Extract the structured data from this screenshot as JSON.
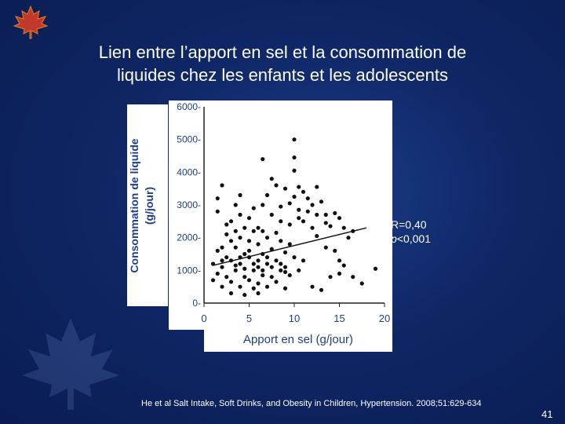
{
  "slide": {
    "title_line1": "Lien entre l’apport en sel et la consommation de",
    "title_line2": "liquides chez les enfants et les adolescents",
    "citation": "He et al Salt Intake, Soft Drinks, and Obesity in Children, Hypertension. 2008;51:629-634",
    "page_number": "41",
    "annotation_r": "R=0,40",
    "annotation_p_italic": "p",
    "annotation_p_rest": "<0,001"
  },
  "chart_data": {
    "type": "scatter",
    "title": "",
    "xlabel": "Apport en sel (g/jour)",
    "ylabel_line1": "Consommation de liquide",
    "ylabel_line2": "(g/jour)",
    "xlim": [
      0,
      20
    ],
    "ylim": [
      0,
      6000
    ],
    "x_ticks": [
      0,
      5,
      10,
      15,
      20
    ],
    "x_tick_labels": [
      "0",
      "5",
      "10",
      "15",
      "20"
    ],
    "y_ticks": [
      0,
      1000,
      2000,
      3000,
      4000,
      5000,
      6000
    ],
    "y_tick_labels": [
      "0-",
      "1000-",
      "2000-",
      "3000-",
      "4000-",
      "5000-",
      "6000-"
    ],
    "grid": false,
    "regression_line": {
      "x": [
        1,
        18
      ],
      "y": [
        1150,
        2300
      ]
    },
    "points": [
      [
        10.0,
        5000
      ],
      [
        10.0,
        4450
      ],
      [
        6.5,
        4400
      ],
      [
        10.0,
        4050
      ],
      [
        7.5,
        3800
      ],
      [
        8.0,
        3600
      ],
      [
        10.5,
        3550
      ],
      [
        12.5,
        3550
      ],
      [
        9.0,
        3500
      ],
      [
        11.0,
        3400
      ],
      [
        7.0,
        3300
      ],
      [
        10.0,
        3250
      ],
      [
        11.5,
        3200
      ],
      [
        13.0,
        3100
      ],
      [
        9.5,
        3050
      ],
      [
        12.0,
        3000
      ],
      [
        8.5,
        2950
      ],
      [
        10.5,
        2850
      ],
      [
        11.5,
        2800
      ],
      [
        14.5,
        2750
      ],
      [
        12.5,
        2700
      ],
      [
        13.5,
        2700
      ],
      [
        15.0,
        2600
      ],
      [
        10.5,
        2600
      ],
      [
        11.0,
        2500
      ],
      [
        13.5,
        2450
      ],
      [
        14.0,
        2350
      ],
      [
        15.5,
        2300
      ],
      [
        12.0,
        2300
      ],
      [
        16.5,
        2200
      ],
      [
        16.0,
        2000
      ],
      [
        12.5,
        2050
      ],
      [
        13.5,
        1700
      ],
      [
        14.5,
        1600
      ],
      [
        15.0,
        1300
      ],
      [
        15.5,
        1150
      ],
      [
        15.0,
        900
      ],
      [
        14.0,
        800
      ],
      [
        16.5,
        800
      ],
      [
        19.0,
        1050
      ],
      [
        17.5,
        600
      ],
      [
        12.0,
        500
      ],
      [
        13.0,
        400
      ],
      [
        1.5,
        3200
      ],
      [
        2.0,
        3600
      ],
      [
        4.0,
        3300
      ],
      [
        1.5,
        2800
      ],
      [
        3.0,
        2500
      ],
      [
        5.0,
        2600
      ],
      [
        4.5,
        2300
      ],
      [
        3.5,
        2200
      ],
      [
        6.0,
        2300
      ],
      [
        2.5,
        2100
      ],
      [
        5.5,
        2200
      ],
      [
        6.5,
        2200
      ],
      [
        3.0,
        1900
      ],
      [
        4.0,
        2000
      ],
      [
        7.0,
        2000
      ],
      [
        8.0,
        2150
      ],
      [
        2.0,
        1700
      ],
      [
        5.0,
        1900
      ],
      [
        6.0,
        1800
      ],
      [
        8.5,
        1900
      ],
      [
        9.5,
        1800
      ],
      [
        1.5,
        1600
      ],
      [
        3.5,
        1700
      ],
      [
        7.5,
        1650
      ],
      [
        9.0,
        1550
      ],
      [
        2.5,
        1400
      ],
      [
        4.5,
        1500
      ],
      [
        6.5,
        1500
      ],
      [
        10.0,
        1400
      ],
      [
        1.0,
        1200
      ],
      [
        3.0,
        1300
      ],
      [
        5.0,
        1400
      ],
      [
        8.0,
        1300
      ],
      [
        11.0,
        1300
      ],
      [
        2.0,
        1100
      ],
      [
        4.0,
        1200
      ],
      [
        6.0,
        1100
      ],
      [
        7.0,
        1200
      ],
      [
        9.0,
        1100
      ],
      [
        1.5,
        900
      ],
      [
        3.5,
        1000
      ],
      [
        5.5,
        1000
      ],
      [
        8.5,
        1000
      ],
      [
        10.5,
        1000
      ],
      [
        2.5,
        800
      ],
      [
        4.5,
        800
      ],
      [
        6.5,
        850
      ],
      [
        7.5,
        800
      ],
      [
        9.5,
        850
      ],
      [
        1.0,
        700
      ],
      [
        3.0,
        650
      ],
      [
        5.0,
        700
      ],
      [
        6.0,
        600
      ],
      [
        8.0,
        650
      ],
      [
        2.0,
        500
      ],
      [
        4.0,
        500
      ],
      [
        5.5,
        450
      ],
      [
        7.0,
        500
      ],
      [
        9.0,
        450
      ],
      [
        3.0,
        300
      ],
      [
        4.5,
        250
      ],
      [
        6.0,
        300
      ],
      [
        2.5,
        2400
      ],
      [
        4.0,
        2700
      ],
      [
        5.5,
        2900
      ],
      [
        6.5,
        3000
      ],
      [
        3.5,
        3000
      ],
      [
        7.5,
        2700
      ],
      [
        8.5,
        2500
      ],
      [
        9.5,
        2400
      ],
      [
        5.0,
        1600
      ],
      [
        6.0,
        1300
      ],
      [
        4.0,
        1400
      ],
      [
        7.0,
        1400
      ],
      [
        3.5,
        1150
      ],
      [
        5.5,
        1200
      ],
      [
        6.5,
        1000
      ],
      [
        4.5,
        1050
      ],
      [
        2.0,
        1300
      ],
      [
        7.5,
        1100
      ],
      [
        8.5,
        1200
      ],
      [
        9.0,
        950
      ]
    ]
  }
}
